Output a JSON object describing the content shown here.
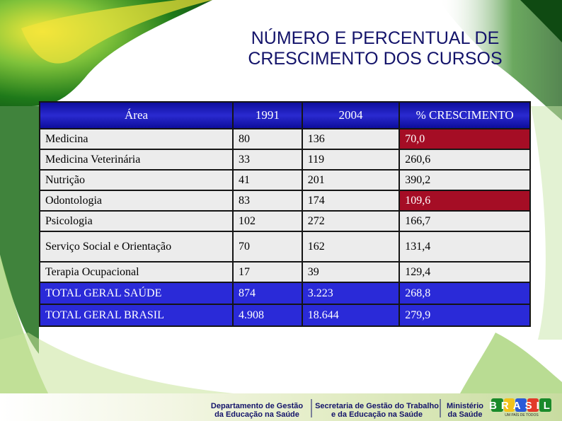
{
  "slide": {
    "title_line1": "NÚMERO E PERCENTUAL DE",
    "title_line2": "CRESCIMENTO DOS CURSOS"
  },
  "table": {
    "headers": [
      "Área",
      "1991",
      "2004",
      "% CRESCIMENTO"
    ],
    "rows": [
      {
        "area": "Medicina",
        "y1991": "80",
        "y2004": "136",
        "growth": "70,0"
      },
      {
        "area": "Medicina Veterinária",
        "y1991": "33",
        "y2004": "119",
        "growth": "260,6"
      },
      {
        "area": "Nutrição",
        "y1991": "41",
        "y2004": "201",
        "growth": "390,2"
      },
      {
        "area": "Odontologia",
        "y1991": "83",
        "y2004": "174",
        "growth": "109,6"
      },
      {
        "area": "Psicologia",
        "y1991": "102",
        "y2004": "272",
        "growth": "166,7"
      },
      {
        "area": "Serviço Social e Orientação",
        "y1991": "70",
        "y2004": "162",
        "growth": "131,4"
      },
      {
        "area": "Terapia Ocupacional",
        "y1991": "17",
        "y2004": "39",
        "growth": "129,4"
      },
      {
        "area": "TOTAL GERAL SAÚDE",
        "y1991": "874",
        "y2004": "3.223",
        "growth": "268,8"
      },
      {
        "area": "TOTAL GERAL BRASIL",
        "y1991": "4.908",
        "y2004": "18.644",
        "growth": "279,9"
      }
    ]
  },
  "footer": {
    "dept1_line1": "Departamento de Gestão",
    "dept1_line2": "da Educação na Saúde",
    "dept2_line1": "Secretaria de Gestão do Trabalho",
    "dept2_line2": "e da Educação na Saúde",
    "dept3_line1": "Ministério",
    "dept3_line2": "da Saúde",
    "logo_text": "BRASIL",
    "logo_tagline": "UM PAÍS DE TODOS"
  },
  "colors": {
    "header_blue": "#1a1ab8",
    "highlight_red": "#a50d25",
    "total_blue": "#2a2ad8",
    "row_gray": "#ececec",
    "title_navy": "#13136a",
    "swoosh_green": "#2e8b1e",
    "swoosh_yellow": "#f2e01a"
  }
}
